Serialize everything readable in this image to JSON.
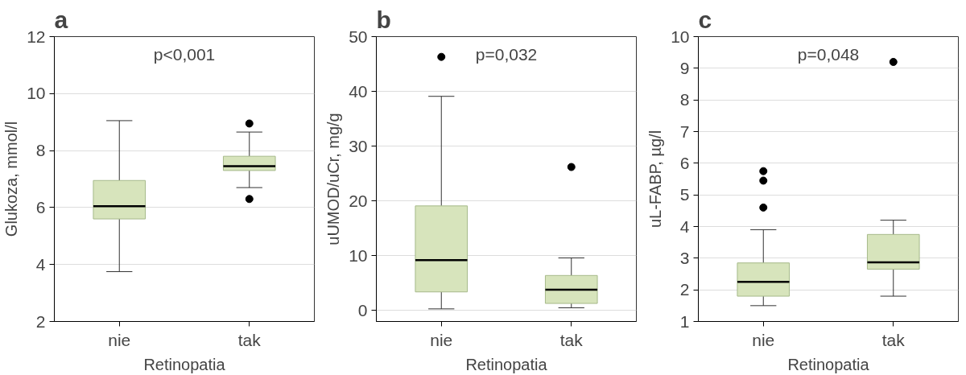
{
  "chart_data": [
    {
      "type": "box",
      "title": "a",
      "xlabel": "Retinopatia",
      "ylabel": "Glukoza, mmol/l",
      "categories": [
        "nie",
        "tak"
      ],
      "color": "#d7e4bc",
      "ylim": [
        2,
        12
      ],
      "yticks": [
        2,
        4,
        6,
        8,
        10,
        12
      ],
      "grid": "y",
      "annotations": [
        "p<0,001"
      ],
      "boxes": [
        {
          "low": 3.75,
          "q1": 5.6,
          "median": 6.05,
          "q3": 6.95,
          "high": 9.05
        },
        {
          "low": 6.7,
          "q1": 7.3,
          "median": 7.45,
          "q3": 7.8,
          "high": 8.65,
          "outliers": [
            8.95,
            6.3
          ]
        }
      ]
    },
    {
      "type": "box",
      "title": "b",
      "xlabel": "Retinopatia",
      "ylabel": "uUMOD/uCr, mg/g",
      "categories": [
        "nie",
        "tak"
      ],
      "color": "#d7e4bc",
      "ylim": [
        -2,
        50
      ],
      "yticks": [
        0,
        10,
        20,
        30,
        40,
        50
      ],
      "grid": "y",
      "annotations": [
        "p=0,032"
      ],
      "boxes": [
        {
          "low": 0.3,
          "q1": 3.4,
          "median": 9.2,
          "q3": 19.1,
          "high": 39.1,
          "outliers": [
            46.3
          ]
        },
        {
          "low": 0.5,
          "q1": 1.3,
          "median": 3.8,
          "q3": 6.4,
          "high": 9.6,
          "outliers": [
            26.2
          ]
        }
      ]
    },
    {
      "type": "box",
      "title": "c",
      "xlabel": "Retinopatia",
      "ylabel": "uL-FABP, µg/l",
      "categories": [
        "nie",
        "tak"
      ],
      "color": "#d7e4bc",
      "ylim": [
        1,
        10
      ],
      "yticks": [
        1,
        2,
        3,
        4,
        5,
        6,
        7,
        8,
        9,
        10
      ],
      "grid": "y",
      "annotations": [
        "p=0,048"
      ],
      "boxes": [
        {
          "low": 1.5,
          "q1": 1.8,
          "median": 2.25,
          "q3": 2.85,
          "high": 3.9,
          "outliers": [
            4.6,
            5.45,
            5.75
          ]
        },
        {
          "low": 1.8,
          "q1": 2.65,
          "median": 2.87,
          "q3": 3.75,
          "high": 4.2,
          "outliers": [
            9.2
          ]
        }
      ]
    }
  ]
}
